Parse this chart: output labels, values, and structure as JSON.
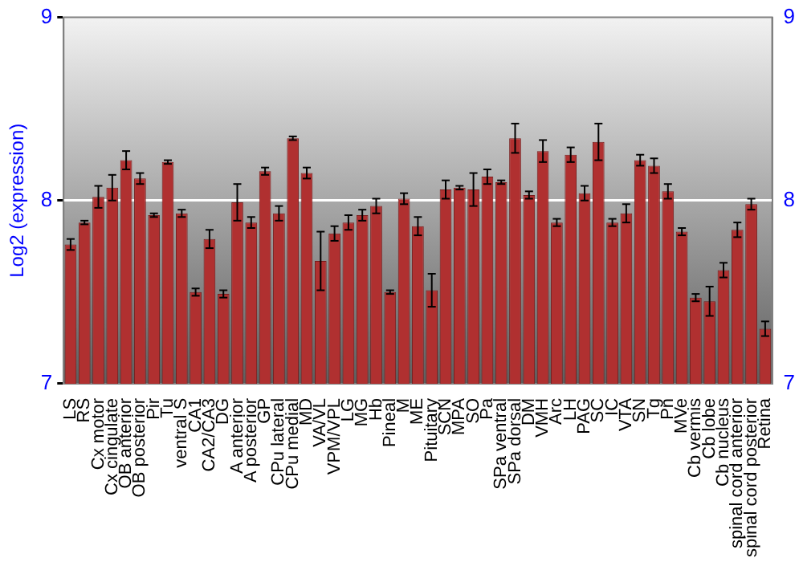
{
  "chart_data": {
    "type": "bar",
    "ylabel": "Log2 (expression)",
    "categories": [
      "LS",
      "RS",
      "Cx motor",
      "Cx cingulate",
      "OB anterior",
      "OB posterior",
      "Pir",
      "Tu",
      "ventral S",
      "CA1",
      "CA2/CA3",
      "DG",
      "A anterior",
      "A posterior",
      "GP",
      "CPu lateral",
      "CPu medial",
      "MD",
      "VA/VL",
      "VPM/VPL",
      "LG",
      "MG",
      "Hb",
      "Pineal",
      "M",
      "ME",
      "Pituitary",
      "SCN",
      "MPA",
      "SO",
      "Pa",
      "SPa ventral",
      "SPa dorsal",
      "DM",
      "VMH",
      "Arc",
      "LH",
      "PAG",
      "SC",
      "IC",
      "VTA",
      "SN",
      "Tg",
      "Pn",
      "MVe",
      "Cb vermis",
      "Cb lobe",
      "Cb nucleus",
      "spinal cord anterior",
      "spinal cord posterior",
      "Retina"
    ],
    "values": [
      7.76,
      7.88,
      8.02,
      8.07,
      8.22,
      8.12,
      7.92,
      8.21,
      7.93,
      7.5,
      7.79,
      7.49,
      7.99,
      7.88,
      8.16,
      7.93,
      8.34,
      8.15,
      7.67,
      7.82,
      7.88,
      7.92,
      7.97,
      7.5,
      8.01,
      7.86,
      7.51,
      8.06,
      8.07,
      8.06,
      8.13,
      8.1,
      8.34,
      8.03,
      8.27,
      7.88,
      8.25,
      8.04,
      8.32,
      7.88,
      7.93,
      8.22,
      8.19,
      8.05,
      7.83,
      7.47,
      7.45,
      7.62,
      7.84,
      7.98,
      7.3
    ],
    "errors": [
      0.03,
      0.01,
      0.06,
      0.07,
      0.05,
      0.03,
      0.01,
      0.01,
      0.02,
      0.02,
      0.05,
      0.02,
      0.1,
      0.03,
      0.02,
      0.04,
      0.01,
      0.03,
      0.16,
      0.04,
      0.04,
      0.03,
      0.04,
      0.01,
      0.03,
      0.05,
      0.09,
      0.05,
      0.01,
      0.09,
      0.04,
      0.01,
      0.08,
      0.02,
      0.06,
      0.02,
      0.04,
      0.04,
      0.1,
      0.02,
      0.05,
      0.03,
      0.04,
      0.04,
      0.02,
      0.02,
      0.08,
      0.04,
      0.04,
      0.03,
      0.04
    ],
    "color": "#b03030",
    "ylim": [
      7,
      9
    ],
    "yticks": [
      7,
      8,
      9
    ],
    "y2lim": [
      7,
      9
    ],
    "y2ticks": [
      7,
      8,
      9
    ],
    "grid": "y",
    "legend": false
  }
}
